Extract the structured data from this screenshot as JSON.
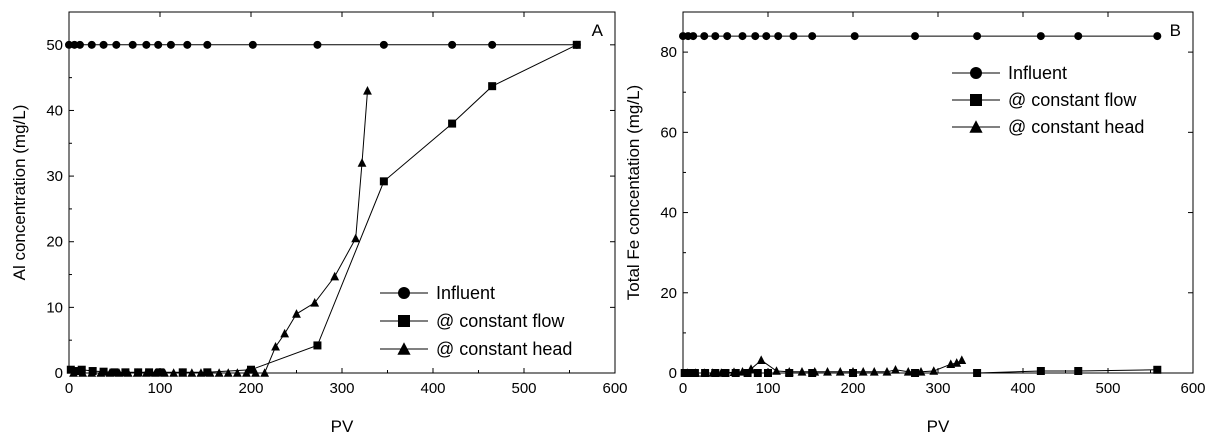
{
  "chart_data": [
    {
      "type": "line",
      "panel_label": "A",
      "xlabel": "PV",
      "ylabel": "Al concentration (mg/L)",
      "xlim": [
        0,
        600
      ],
      "ylim": [
        0,
        55
      ],
      "xticks": [
        0,
        100,
        200,
        300,
        400,
        500,
        600
      ],
      "yticks": [
        0,
        10,
        20,
        30,
        40,
        50
      ],
      "grid": false,
      "legend_position": "bottom-right",
      "series": [
        {
          "name": "Influent",
          "marker": "circle",
          "x": [
            0,
            6,
            12,
            25,
            38,
            52,
            70,
            85,
            98,
            112,
            130,
            152,
            202,
            273,
            346,
            421,
            465,
            558
          ],
          "y": [
            50,
            50,
            50,
            50,
            50,
            50,
            50,
            50,
            50,
            50,
            50,
            50,
            50,
            50,
            50,
            50,
            50,
            50
          ]
        },
        {
          "name": "@ constant flow",
          "marker": "square",
          "x": [
            2,
            8,
            14,
            26,
            38,
            50,
            62,
            76,
            88,
            100,
            125,
            152,
            200,
            273,
            346,
            421,
            465,
            558
          ],
          "y": [
            0.5,
            0.3,
            0.5,
            0.3,
            0.2,
            0.1,
            0.1,
            0.1,
            0.1,
            0.1,
            0.1,
            0.1,
            0.5,
            4.2,
            29.2,
            38,
            43.7,
            50
          ]
        },
        {
          "name": "@ constant head",
          "marker": "triangle",
          "x": [
            5,
            15,
            25,
            35,
            45,
            55,
            65,
            75,
            85,
            95,
            105,
            115,
            125,
            135,
            145,
            155,
            165,
            175,
            185,
            195,
            205,
            215,
            227,
            237,
            250,
            270,
            292,
            315,
            322,
            328
          ],
          "y": [
            0,
            0,
            0,
            0,
            0,
            0,
            0,
            0,
            0,
            0,
            0,
            0,
            0,
            0,
            0,
            0,
            0,
            0,
            0,
            0,
            0,
            0,
            4,
            6,
            9,
            10.7,
            14.7,
            20.5,
            32,
            43
          ]
        }
      ]
    },
    {
      "type": "line",
      "panel_label": "B",
      "xlabel": "PV",
      "ylabel": "Total Fe concentation (mg/L)",
      "xlim": [
        0,
        600
      ],
      "ylim": [
        0,
        90
      ],
      "xticks": [
        0,
        100,
        200,
        300,
        400,
        500,
        600
      ],
      "yticks": [
        0,
        20,
        40,
        60,
        80
      ],
      "grid": false,
      "legend_position": "top-right",
      "series": [
        {
          "name": "Influent",
          "marker": "circle",
          "x": [
            0,
            6,
            12,
            25,
            38,
            52,
            70,
            85,
            98,
            112,
            130,
            152,
            202,
            273,
            346,
            421,
            465,
            558
          ],
          "y": [
            84,
            84,
            84,
            84,
            84,
            84,
            84,
            84,
            84,
            84,
            84,
            84,
            84,
            84,
            84,
            84,
            84,
            84
          ]
        },
        {
          "name": "@ constant flow",
          "marker": "square",
          "x": [
            2,
            8,
            14,
            26,
            38,
            50,
            62,
            76,
            88,
            100,
            125,
            152,
            200,
            273,
            346,
            421,
            465,
            558
          ],
          "y": [
            0,
            0,
            0,
            0,
            0,
            0,
            0,
            0,
            0,
            0,
            0,
            0,
            0,
            0,
            0,
            0.5,
            0.5,
            0.8
          ]
        },
        {
          "name": "@ constant head",
          "marker": "triangle",
          "x": [
            5,
            15,
            25,
            35,
            45,
            60,
            70,
            80,
            92,
            110,
            125,
            140,
            155,
            170,
            185,
            200,
            212,
            225,
            240,
            250,
            265,
            280,
            295,
            315,
            322,
            328
          ],
          "y": [
            0,
            0,
            0,
            0,
            0,
            0.2,
            0.3,
            1,
            3.2,
            0.5,
            0.3,
            0.3,
            0.3,
            0.3,
            0.3,
            0.3,
            0.3,
            0.3,
            0.3,
            0.8,
            0.3,
            0.3,
            0.5,
            2.2,
            2.5,
            3.2
          ]
        }
      ]
    }
  ]
}
